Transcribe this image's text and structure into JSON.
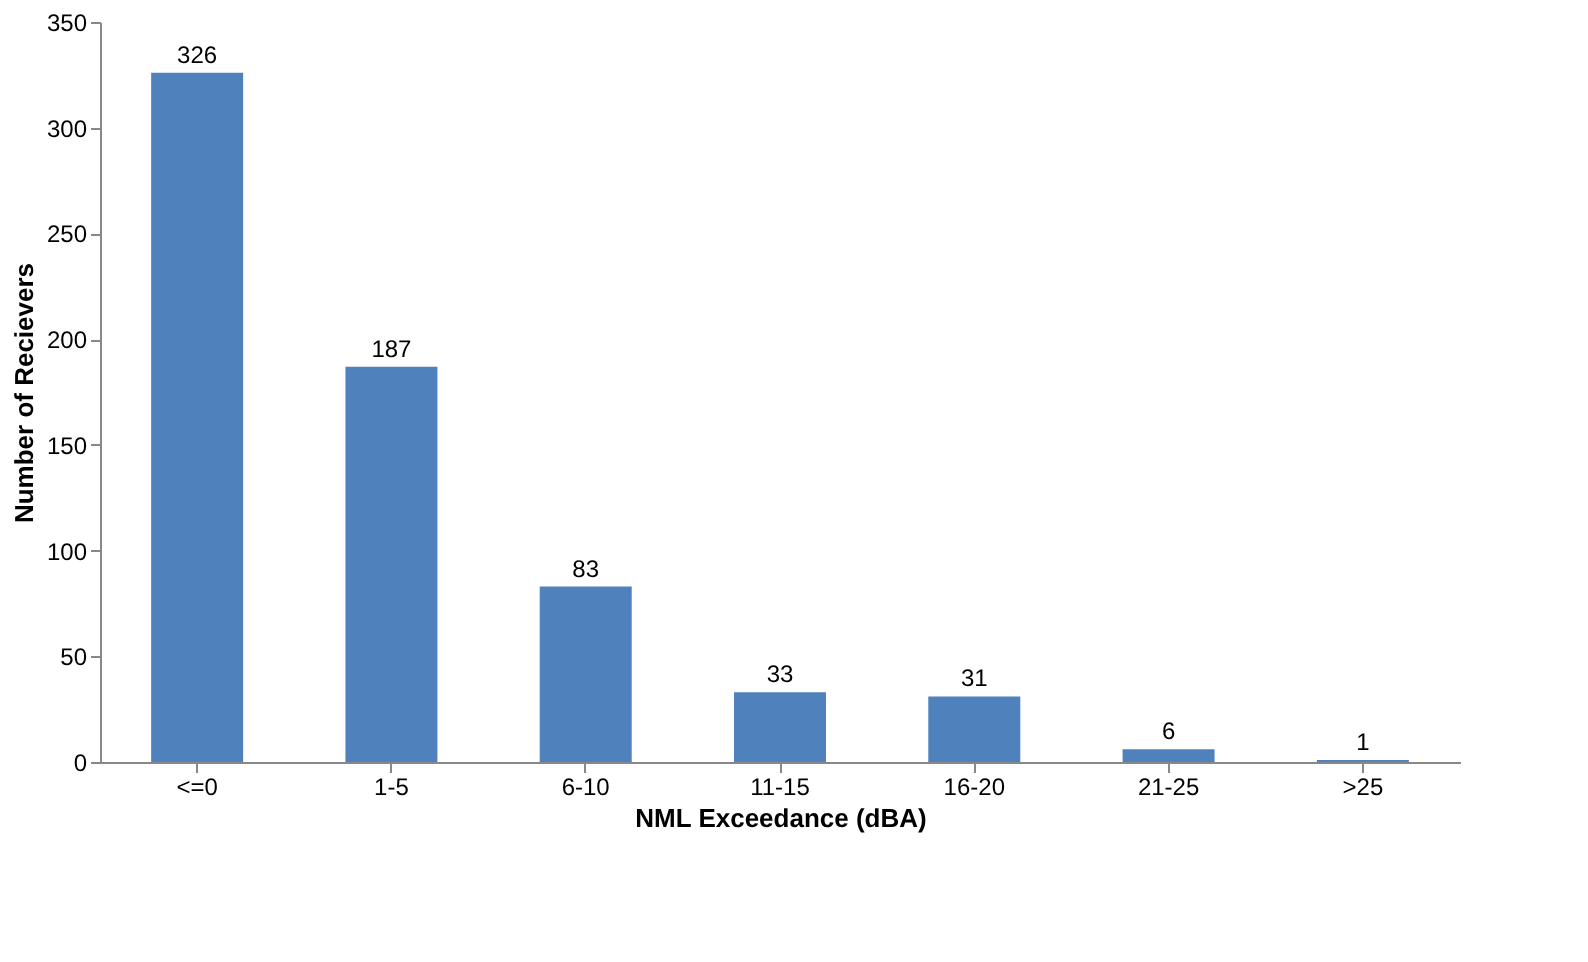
{
  "chart_data": {
    "type": "bar",
    "xlabel": "NML Exceedance (dBA)",
    "ylabel": "Number of Recievers",
    "categories": [
      "<=0",
      "1-5",
      "6-10",
      "11-15",
      "16-20",
      "21-25",
      ">25"
    ],
    "values": [
      326,
      187,
      83,
      33,
      31,
      6,
      1
    ],
    "color": "#4f81bd",
    "ylim": [
      0,
      350
    ],
    "yticks": [
      0,
      50,
      100,
      150,
      200,
      250,
      300,
      350
    ],
    "data_labels": true
  }
}
